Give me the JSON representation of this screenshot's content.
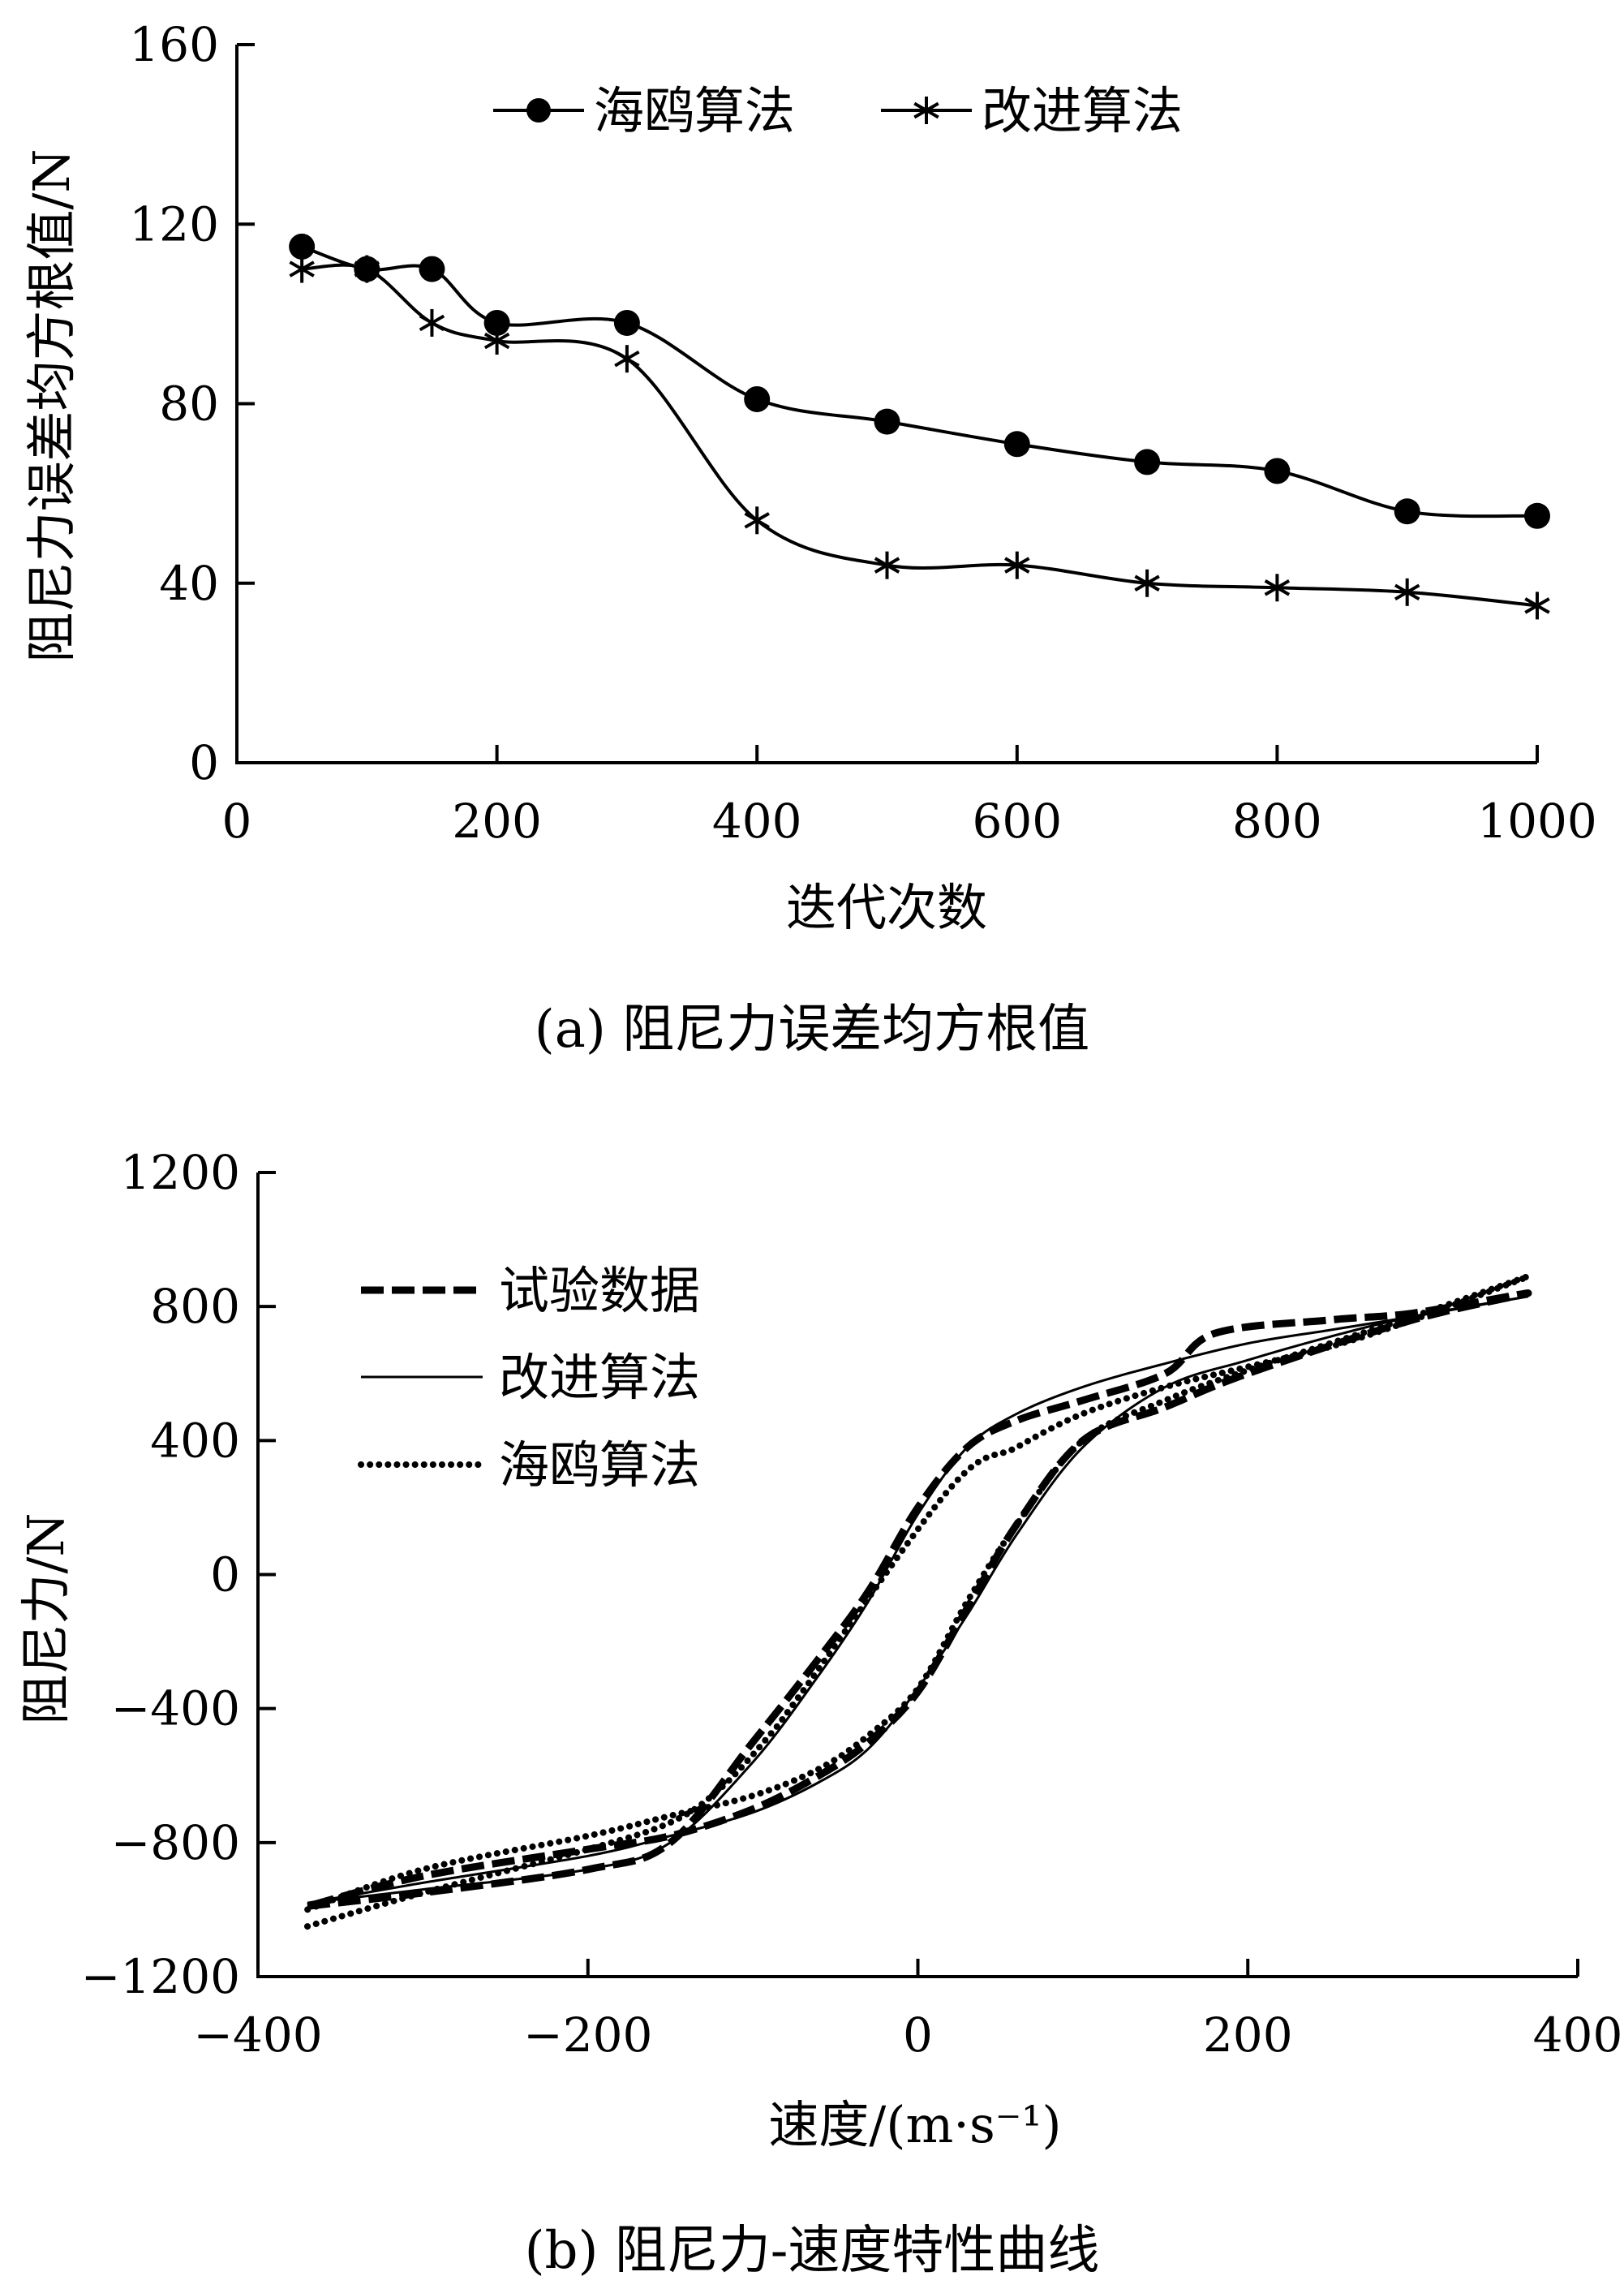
{
  "chart_data": [
    {
      "type": "line",
      "caption": "(a) 阻尼力误差均方根值",
      "xlabel": "迭代次数",
      "ylabel": "阻尼力误差均方根值/N",
      "xlim": [
        0,
        1000
      ],
      "ylim": [
        0,
        160
      ],
      "x_ticks": [
        "0",
        "200",
        "400",
        "600",
        "800",
        "1000"
      ],
      "y_ticks": [
        "0",
        "40",
        "80",
        "120",
        "160"
      ],
      "legend_position": "top",
      "x": [
        50,
        100,
        150,
        200,
        300,
        400,
        500,
        600,
        700,
        800,
        900,
        1000
      ],
      "series": [
        {
          "name": "海鸥算法",
          "marker": "filled-circle",
          "values": [
            115,
            110,
            110,
            98,
            98,
            81,
            76,
            71,
            67,
            65,
            56,
            55
          ]
        },
        {
          "name": "改进算法",
          "marker": "asterisk",
          "values": [
            110,
            110,
            98,
            94,
            90,
            54,
            44,
            44,
            40,
            39,
            38,
            35
          ]
        }
      ]
    },
    {
      "type": "line",
      "caption": "(b) 阻尼力-速度特性曲线",
      "xlabel": "速度/(m·s⁻¹)",
      "ylabel": "阻尼力/N",
      "xlim": [
        -400,
        400
      ],
      "ylim": [
        -1200,
        1200
      ],
      "x_ticks": [
        "−400",
        "−200",
        "0",
        "200",
        "400"
      ],
      "y_ticks": [
        "−1200",
        "−800",
        "−400",
        "0",
        "400",
        "800",
        "1200"
      ],
      "legend_position": "top-left",
      "series": [
        {
          "name": "试验数据",
          "style": "dashed",
          "x": [
            -370,
            -300,
            -200,
            -150,
            -100,
            -60,
            -30,
            0,
            30,
            60,
            100,
            150,
            180,
            250,
            300,
            370,
            300,
            200,
            150,
            100,
            60,
            30,
            0,
            -30,
            -60,
            -100,
            -150,
            -200,
            -300,
            -370
          ],
          "y": [
            -990,
            -950,
            -880,
            -800,
            -500,
            -250,
            -50,
            200,
            380,
            460,
            520,
            600,
            720,
            760,
            780,
            840,
            760,
            600,
            500,
            400,
            150,
            -100,
            -350,
            -500,
            -600,
            -700,
            -780,
            -820,
            -900,
            -990
          ]
        },
        {
          "name": "改进算法",
          "style": "solid",
          "x": [
            -370,
            -300,
            -200,
            -150,
            -100,
            -60,
            -30,
            0,
            30,
            60,
            100,
            150,
            200,
            250,
            300,
            370,
            300,
            250,
            200,
            150,
            100,
            60,
            30,
            0,
            -30,
            -60,
            -100,
            -150,
            -200,
            -300,
            -370
          ],
          "y": [
            -980,
            -940,
            -880,
            -800,
            -560,
            -300,
            -80,
            180,
            380,
            480,
            560,
            630,
            690,
            730,
            770,
            830,
            770,
            710,
            640,
            560,
            380,
            120,
            -120,
            -340,
            -520,
            -620,
            -710,
            -780,
            -840,
            -920,
            -980
          ],
          "lower_branch_y": null
        },
        {
          "name": "海鸥算法",
          "style": "dotted",
          "x": [
            -370,
            -300,
            -200,
            -150,
            -120,
            -90,
            -70,
            20,
            60,
            100,
            150,
            200,
            250,
            300,
            370,
            300,
            200,
            150,
            100,
            60,
            30,
            0,
            -30,
            -60,
            -100,
            -150,
            -200,
            -300,
            -370
          ],
          "y": [
            -1050,
            -950,
            -820,
            -740,
            -640,
            -480,
            -350,
            260,
            380,
            480,
            560,
            620,
            680,
            760,
            890,
            770,
            610,
            520,
            400,
            150,
            -80,
            -340,
            -480,
            -580,
            -660,
            -720,
            -780,
            -880,
            -1000
          ]
        }
      ]
    }
  ]
}
